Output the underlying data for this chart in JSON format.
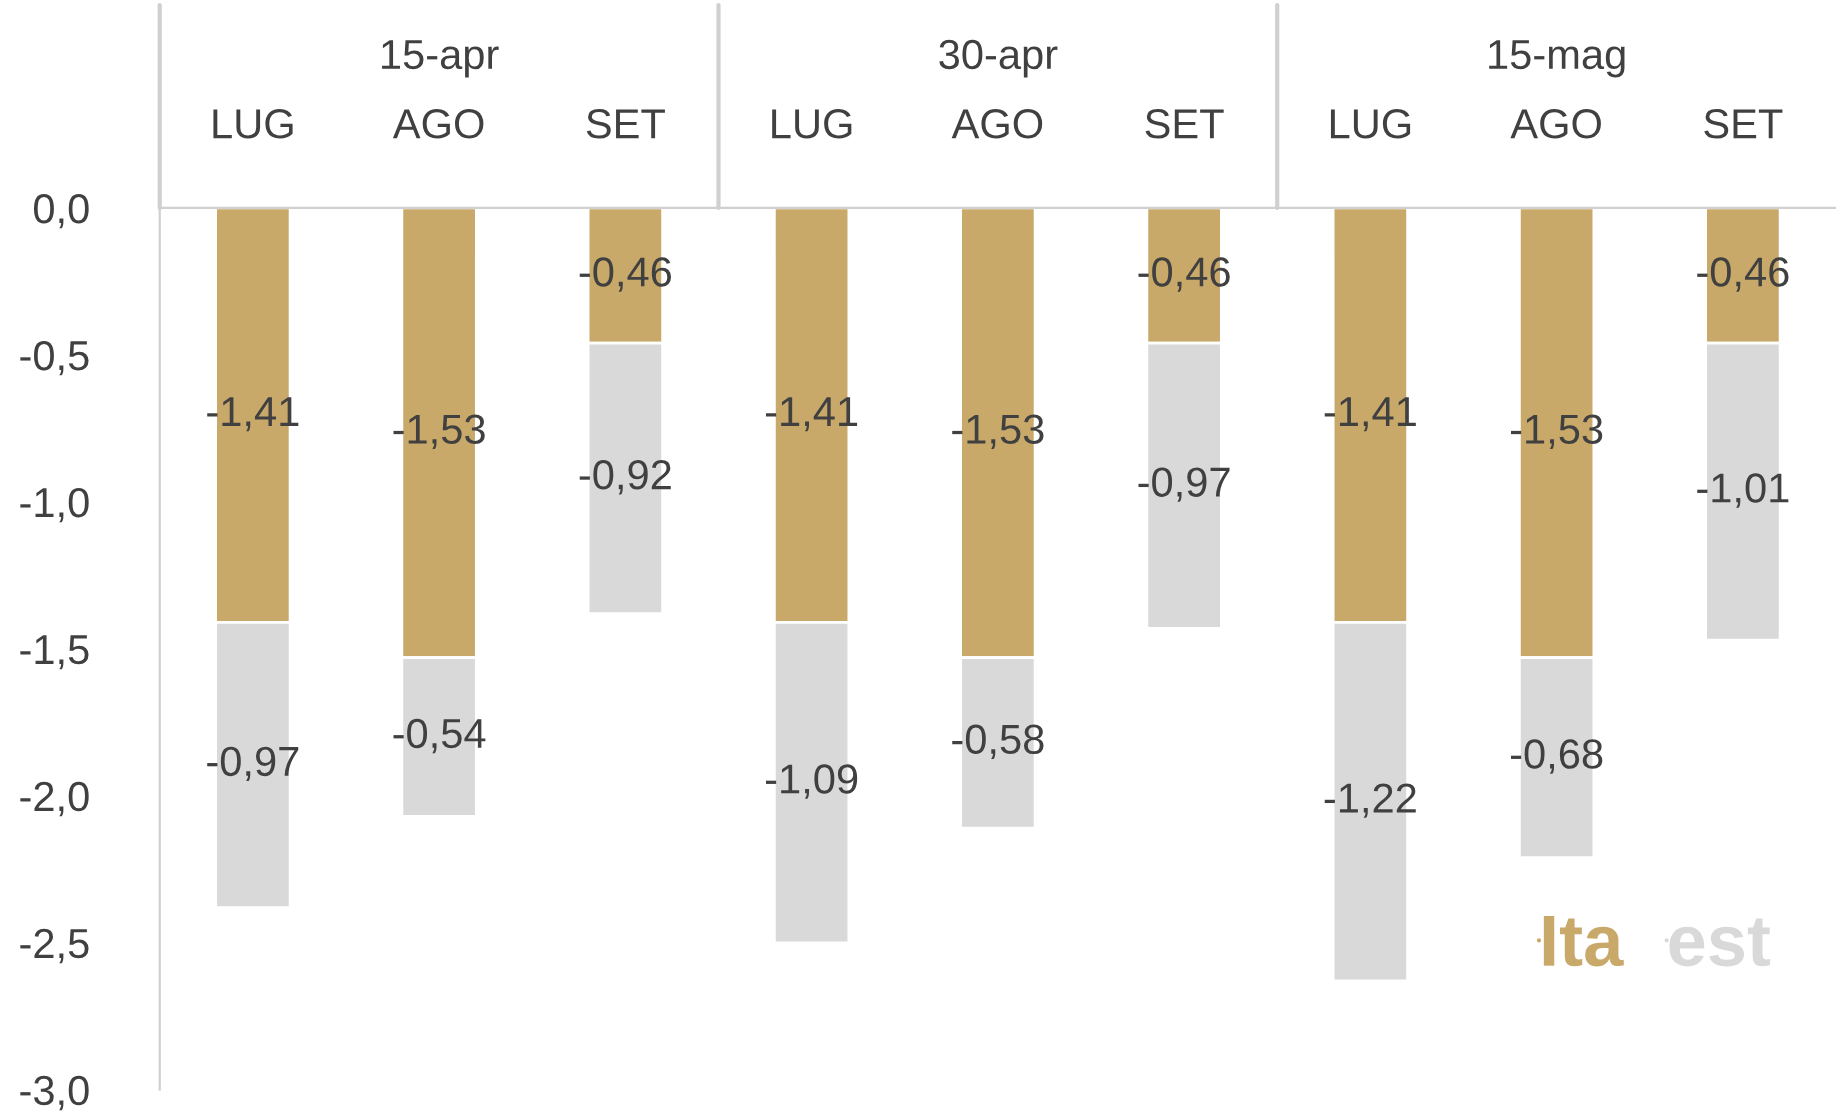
{
  "chart_data": {
    "type": "bar",
    "stacked": true,
    "categories": [
      "LUG",
      "AGO",
      "SET",
      "LUG",
      "AGO",
      "SET",
      "LUG",
      "AGO",
      "SET"
    ],
    "annotations": [
      "15-apr",
      "30-apr",
      "15-mag"
    ],
    "series": [
      {
        "name": "Ita",
        "color": "#c9a96a",
        "values": [
          -1.41,
          -1.53,
          -0.46,
          -1.41,
          -1.53,
          -0.46,
          -1.41,
          -1.53,
          -0.46
        ],
        "value_labels": [
          "-1,41",
          "-1,53",
          "-0,46",
          "-1,41",
          "-1,53",
          "-0,46",
          "-1,41",
          "-1,53",
          "-0,46"
        ]
      },
      {
        "name": "est",
        "color": "#d9d9d9",
        "values": [
          -0.97,
          -0.54,
          -0.92,
          -1.09,
          -0.58,
          -0.97,
          -1.22,
          -0.68,
          -1.01
        ],
        "value_labels": [
          "-0,97",
          "-0,54",
          "-0,92",
          "-1,09",
          "-0,58",
          "-0,97",
          "-1,22",
          "-0,68",
          "-1,01"
        ]
      }
    ],
    "ylim": [
      -3.0,
      0.0
    ],
    "yticks": [
      {
        "value": 0.0,
        "label": "0,0"
      },
      {
        "value": -0.5,
        "label": "-0,5"
      },
      {
        "value": -1.0,
        "label": "-1,0"
      },
      {
        "value": -1.5,
        "label": "-1,5"
      },
      {
        "value": -2.0,
        "label": "-2,0"
      },
      {
        "value": -2.5,
        "label": "-2,5"
      },
      {
        "value": -3.0,
        "label": "-3,0"
      }
    ],
    "legend": "bottom right",
    "grid": false
  }
}
